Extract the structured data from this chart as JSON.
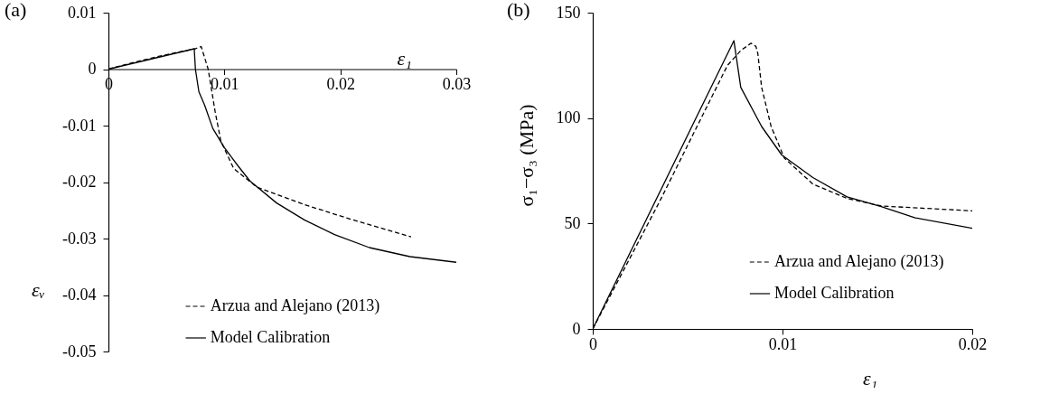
{
  "chart_data": [
    {
      "type": "line",
      "title": "(a)",
      "xlabel": "ε₁",
      "ylabel": "εᵥ",
      "xlim": [
        0,
        0.03
      ],
      "xticks": [
        0,
        0.01,
        0.02,
        0.03
      ],
      "ylim": [
        -0.05,
        0.01
      ],
      "yticks": [
        -0.05,
        -0.04,
        -0.03,
        -0.02,
        -0.01,
        0,
        0.01
      ],
      "grid": false,
      "legend": "bottom",
      "series": [
        {
          "name": "Arzua and Alejano (2013)",
          "color": "#000000",
          "line_style": "dashed",
          "x": [
            0,
            0.002,
            0.004,
            0.006,
            0.0075,
            0.008,
            0.0086,
            0.0092,
            0.0097,
            0.0108,
            0.0128,
            0.0169,
            0.0211,
            0.0261
          ],
          "values": [
            0,
            0.0011,
            0.0021,
            0.003,
            0.0036,
            0.004,
            0,
            -0.0075,
            -0.0128,
            -0.0176,
            -0.0209,
            -0.024,
            -0.0267,
            -0.0297
          ]
        },
        {
          "name": "Model Calibration",
          "color": "#000000",
          "line_style": "solid",
          "x": [
            0,
            0.0074,
            0.0075,
            0.0078,
            0.0083,
            0.009,
            0.01,
            0.0112,
            0.0122,
            0.0145,
            0.0169,
            0.0195,
            0.0225,
            0.026,
            0.03
          ],
          "values": [
            0,
            0.0036,
            0,
            -0.004,
            -0.0064,
            -0.0105,
            -0.0139,
            -0.0172,
            -0.0198,
            -0.0237,
            -0.0267,
            -0.0293,
            -0.0316,
            -0.0332,
            -0.0342
          ]
        }
      ]
    },
    {
      "type": "line",
      "title": "(b)",
      "xlabel": "ε₁",
      "ylabel": "σ₁−σ₃ (MPa)",
      "xlim": [
        0,
        0.02
      ],
      "xticks": [
        0,
        0.01,
        0.02
      ],
      "ylim": [
        0,
        150
      ],
      "yticks": [
        0,
        50,
        100,
        150
      ],
      "grid": false,
      "legend": "bottom right",
      "series": [
        {
          "name": "Arzua and Alejano (2013)",
          "color": "#000000",
          "line_style": "dashed",
          "x": [
            0,
            0.0035,
            0.0071,
            0.0078,
            0.00834,
            0.0086,
            0.0087,
            0.0089,
            0.0094,
            0.0101,
            0.0116,
            0.0134,
            0.0152,
            0.0175,
            0.02
          ],
          "values": [
            0,
            60,
            125,
            132,
            135.5,
            134,
            130.6,
            114.6,
            96,
            81,
            68.7,
            61.9,
            58.3,
            57.2,
            56
          ]
        },
        {
          "name": "Model Calibration",
          "color": "#000000",
          "line_style": "solid",
          "x": [
            0,
            0.00744,
            0.0078,
            0.0089,
            0.00996,
            0.0116,
            0.0134,
            0.0152,
            0.017,
            0.02
          ],
          "values": [
            0,
            136.7,
            114.6,
            96,
            82.5,
            71.8,
            62.6,
            58,
            52.7,
            47.7
          ]
        }
      ]
    }
  ]
}
